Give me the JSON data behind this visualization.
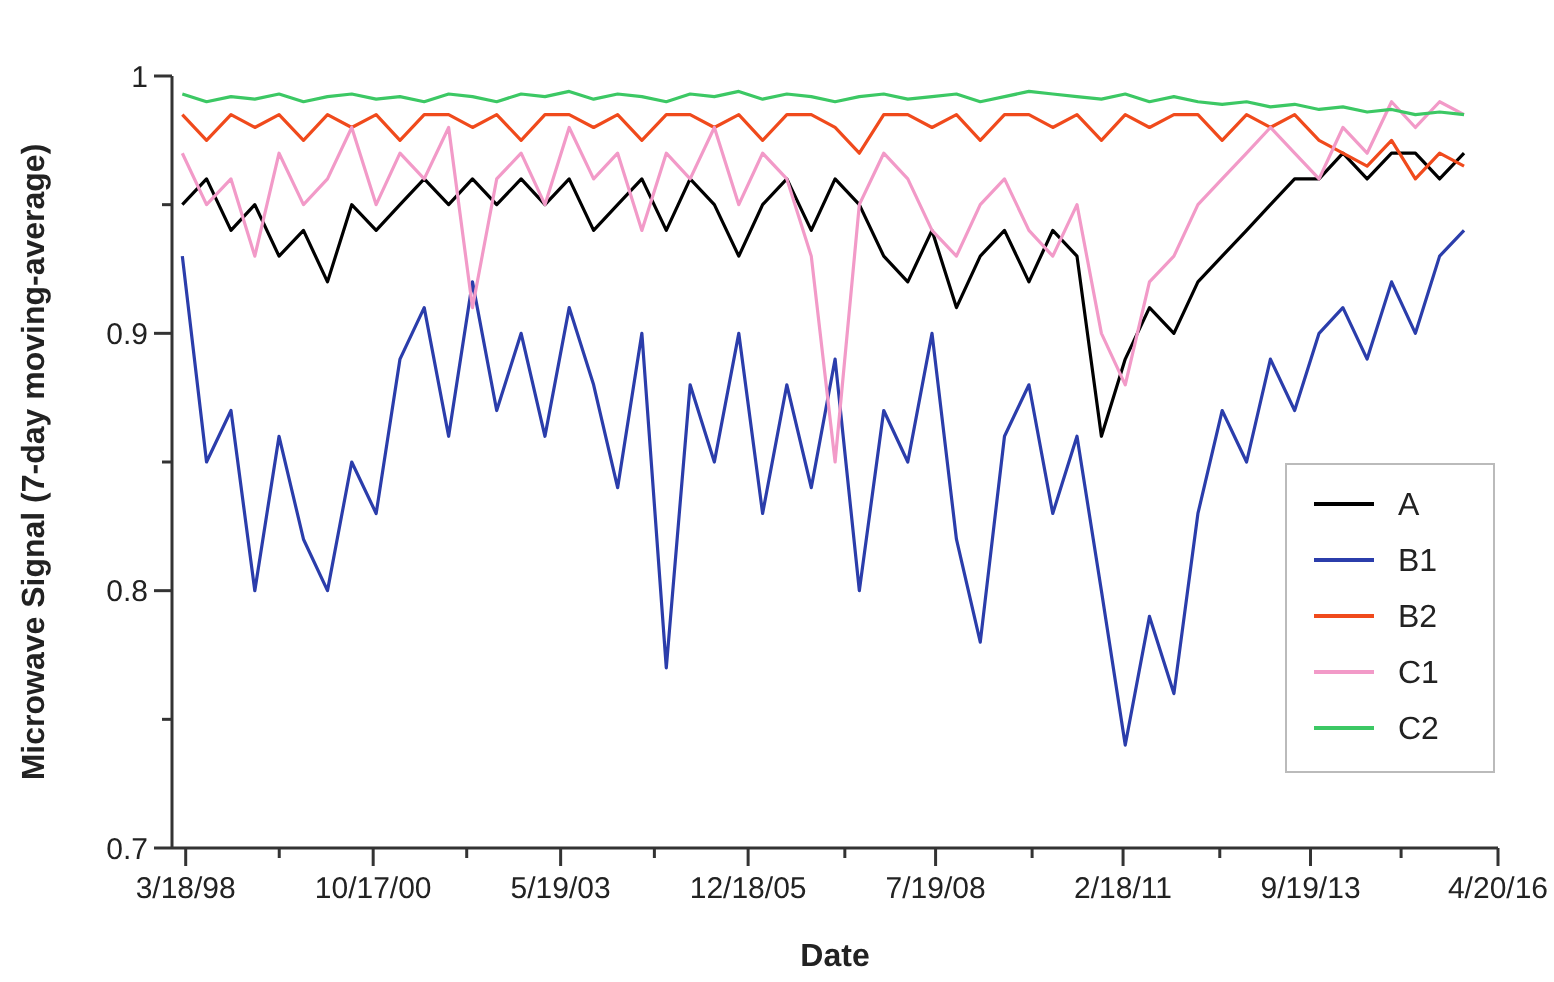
{
  "chart_data": {
    "type": "line",
    "xlabel": "Date",
    "ylabel": "Microwave Signal (7-day moving-average)",
    "x": [
      "1998-03",
      "1998-07",
      "1998-11",
      "1999-03",
      "1999-07",
      "1999-11",
      "2000-03",
      "2000-07",
      "2000-11",
      "2001-03",
      "2001-07",
      "2001-11",
      "2002-03",
      "2002-07",
      "2002-11",
      "2003-03",
      "2003-07",
      "2003-11",
      "2004-03",
      "2004-07",
      "2004-11",
      "2005-03",
      "2005-07",
      "2005-11",
      "2006-03",
      "2006-07",
      "2006-11",
      "2007-03",
      "2007-07",
      "2007-11",
      "2008-03",
      "2008-07",
      "2008-11",
      "2009-03",
      "2009-07",
      "2009-11",
      "2010-03",
      "2010-07",
      "2010-11",
      "2011-03",
      "2011-07",
      "2011-11",
      "2012-03",
      "2012-07",
      "2012-11",
      "2013-03",
      "2013-07",
      "2013-11",
      "2014-03",
      "2014-07",
      "2014-11",
      "2015-03",
      "2015-07",
      "2015-11"
    ],
    "series": [
      {
        "name": "A",
        "color": "#000000",
        "values": [
          0.95,
          0.96,
          0.94,
          0.95,
          0.93,
          0.94,
          0.92,
          0.95,
          0.94,
          0.95,
          0.96,
          0.95,
          0.96,
          0.95,
          0.96,
          0.95,
          0.96,
          0.94,
          0.95,
          0.96,
          0.94,
          0.96,
          0.95,
          0.93,
          0.95,
          0.96,
          0.94,
          0.96,
          0.95,
          0.93,
          0.92,
          0.94,
          0.91,
          0.93,
          0.94,
          0.92,
          0.94,
          0.93,
          0.86,
          0.89,
          0.91,
          0.9,
          0.92,
          0.93,
          0.94,
          0.95,
          0.96,
          0.96,
          0.97,
          0.96,
          0.97,
          0.97,
          0.96,
          0.97
        ]
      },
      {
        "name": "B1",
        "color": "#2b3dab",
        "values": [
          0.93,
          0.85,
          0.87,
          0.8,
          0.86,
          0.82,
          0.8,
          0.85,
          0.83,
          0.89,
          0.91,
          0.86,
          0.92,
          0.87,
          0.9,
          0.86,
          0.91,
          0.88,
          0.84,
          0.9,
          0.77,
          0.88,
          0.85,
          0.9,
          0.83,
          0.88,
          0.84,
          0.89,
          0.8,
          0.87,
          0.85,
          0.9,
          0.82,
          0.78,
          0.86,
          0.88,
          0.83,
          0.86,
          0.8,
          0.74,
          0.79,
          0.76,
          0.83,
          0.87,
          0.85,
          0.89,
          0.87,
          0.9,
          0.91,
          0.89,
          0.92,
          0.9,
          0.93,
          0.94
        ]
      },
      {
        "name": "B2",
        "color": "#f04a1c",
        "values": [
          0.985,
          0.975,
          0.985,
          0.98,
          0.985,
          0.975,
          0.985,
          0.98,
          0.985,
          0.975,
          0.985,
          0.985,
          0.98,
          0.985,
          0.975,
          0.985,
          0.985,
          0.98,
          0.985,
          0.975,
          0.985,
          0.985,
          0.98,
          0.985,
          0.975,
          0.985,
          0.985,
          0.98,
          0.97,
          0.985,
          0.985,
          0.98,
          0.985,
          0.975,
          0.985,
          0.985,
          0.98,
          0.985,
          0.975,
          0.985,
          0.98,
          0.985,
          0.985,
          0.975,
          0.985,
          0.98,
          0.985,
          0.975,
          0.97,
          0.965,
          0.975,
          0.96,
          0.97,
          0.965
        ]
      },
      {
        "name": "C1",
        "color": "#f29ac8",
        "values": [
          0.97,
          0.95,
          0.96,
          0.93,
          0.97,
          0.95,
          0.96,
          0.98,
          0.95,
          0.97,
          0.96,
          0.98,
          0.91,
          0.96,
          0.97,
          0.95,
          0.98,
          0.96,
          0.97,
          0.94,
          0.97,
          0.96,
          0.98,
          0.95,
          0.97,
          0.96,
          0.93,
          0.85,
          0.95,
          0.97,
          0.96,
          0.94,
          0.93,
          0.95,
          0.96,
          0.94,
          0.93,
          0.95,
          0.9,
          0.88,
          0.92,
          0.93,
          0.95,
          0.96,
          0.97,
          0.98,
          0.97,
          0.96,
          0.98,
          0.97,
          0.99,
          0.98,
          0.99,
          0.985
        ]
      },
      {
        "name": "C2",
        "color": "#3cc864",
        "values": [
          0.993,
          0.99,
          0.992,
          0.991,
          0.993,
          0.99,
          0.992,
          0.993,
          0.991,
          0.992,
          0.99,
          0.993,
          0.992,
          0.99,
          0.993,
          0.992,
          0.994,
          0.991,
          0.993,
          0.992,
          0.99,
          0.993,
          0.992,
          0.994,
          0.991,
          0.993,
          0.992,
          0.99,
          0.992,
          0.993,
          0.991,
          0.992,
          0.993,
          0.99,
          0.992,
          0.994,
          0.993,
          0.992,
          0.991,
          0.993,
          0.99,
          0.992,
          0.99,
          0.989,
          0.99,
          0.988,
          0.989,
          0.987,
          0.988,
          0.986,
          0.987,
          0.985,
          0.986,
          0.985
        ]
      }
    ],
    "xlim": [
      "1998-01-08",
      "2016-04-20"
    ],
    "xticks": [
      {
        "value": "1998-03-18",
        "label": "3/18/98"
      },
      {
        "value": "1999-07-02",
        "label": null
      },
      {
        "value": "2000-10-17",
        "label": "10/17/00"
      },
      {
        "value": "2002-01-31",
        "label": null
      },
      {
        "value": "2003-05-19",
        "label": "5/19/03"
      },
      {
        "value": "2004-09-02",
        "label": null
      },
      {
        "value": "2005-12-18",
        "label": "12/18/05"
      },
      {
        "value": "2007-04-19",
        "label": null
      },
      {
        "value": "2008-07-19",
        "label": "7/19/08"
      },
      {
        "value": "2009-11-17",
        "label": null
      },
      {
        "value": "2011-02-18",
        "label": "2/18/11"
      },
      {
        "value": "2012-06-19",
        "label": null
      },
      {
        "value": "2013-09-19",
        "label": "9/19/13"
      },
      {
        "value": "2014-12-19",
        "label": null
      },
      {
        "value": "2016-04-20",
        "label": "4/20/16"
      }
    ],
    "ylim": [
      0.7,
      1
    ],
    "yticks": [
      {
        "value": 0.7,
        "label": "0.7"
      },
      {
        "value": 0.75,
        "label": null
      },
      {
        "value": 0.8,
        "label": "0.8"
      },
      {
        "value": 0.85,
        "label": null
      },
      {
        "value": 0.9,
        "label": "0.9"
      },
      {
        "value": 0.95,
        "label": null
      },
      {
        "value": 1,
        "label": "1"
      }
    ],
    "grid": false,
    "legend": "bottom right",
    "marker": "none",
    "line_style": "solid"
  }
}
